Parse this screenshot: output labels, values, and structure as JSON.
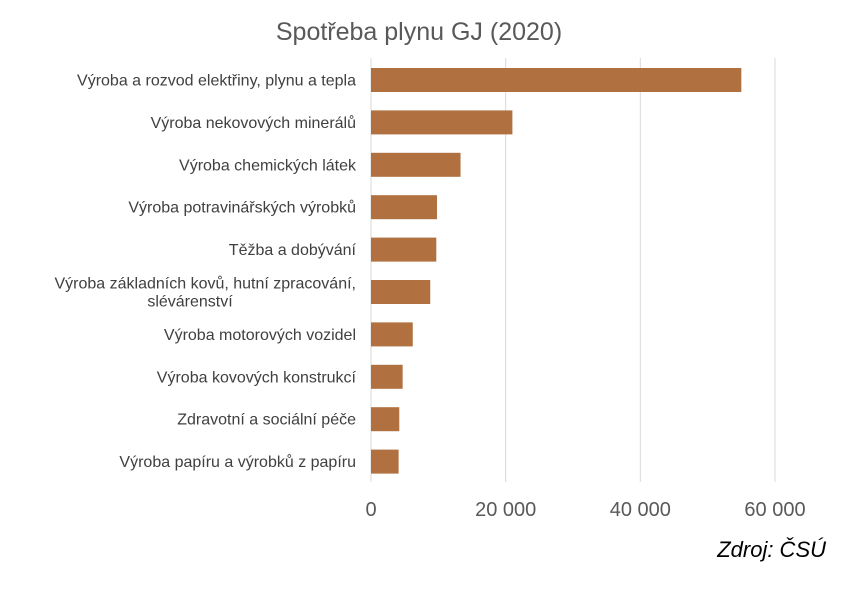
{
  "chart_data": {
    "type": "bar",
    "orientation": "horizontal",
    "title": "Spotřeba plynu GJ (2020)",
    "xlabel": "",
    "ylabel": "",
    "categories": [
      "Výroba a rozvod elektřiny, plynu a tepla",
      "Výroba  nekovových minerálů",
      "Výroba chemických látek",
      "Výroba potravinářských výrobků",
      "Těžba a dobývání",
      "Výroba základních kovů, hutní zpracování, slévárenství",
      "Výroba motorových vozidel",
      "Výroba kovových konstrukcí",
      "Zdravotní a sociální péče",
      "Výroba papíru a výrobků z papíru"
    ],
    "category_lines": [
      [
        "Výroba a rozvod elektřiny, plynu a tepla"
      ],
      [
        "Výroba  nekovových minerálů"
      ],
      [
        "Výroba chemických látek"
      ],
      [
        "Výroba potravinářských výrobků"
      ],
      [
        "Těžba a dobývání"
      ],
      [
        "Výroba základních kovů, hutní zpracování,",
        "slévárenství"
      ],
      [
        "Výroba motorových vozidel"
      ],
      [
        "Výroba kovových konstrukcí"
      ],
      [
        "Zdravotní a sociální péče"
      ],
      [
        "Výroba papíru a výrobků z papíru"
      ]
    ],
    "values": [
      55000,
      21000,
      13300,
      9800,
      9700,
      8800,
      6200,
      4700,
      4200,
      4100
    ],
    "xlim": [
      0,
      66000
    ],
    "xticks": [
      0,
      20000,
      40000,
      60000
    ],
    "xtick_labels": [
      "0",
      "20 000",
      "40 000",
      "60 000"
    ],
    "grid": true,
    "legend": "none",
    "bar_color": "#b07040",
    "grid_color": "#d9d9d9"
  },
  "source": "Zdroj: ČSÚ"
}
